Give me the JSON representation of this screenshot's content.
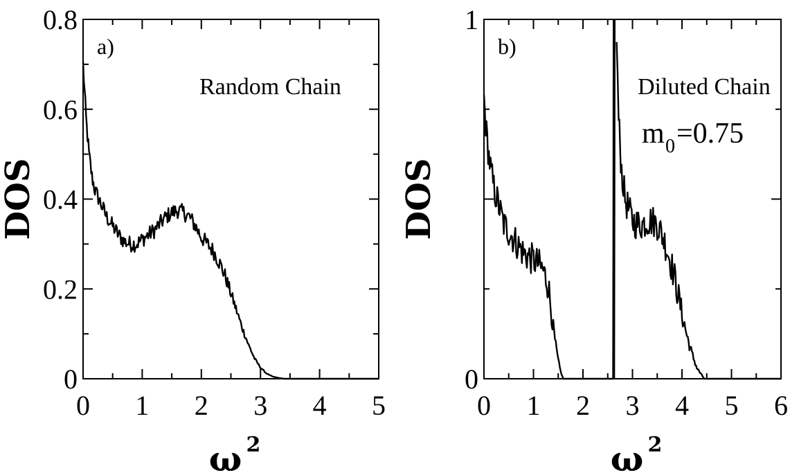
{
  "chart_data": [
    {
      "type": "line",
      "panel_label": "a)",
      "annotation": "Random Chain",
      "xlabel_base": "ω",
      "xlabel_exponent": "2",
      "ylabel": "DOS",
      "xlim": [
        0,
        5
      ],
      "ylim": [
        0,
        0.8
      ],
      "x_ticks": [
        "0",
        "1",
        "2",
        "3",
        "4",
        "5"
      ],
      "y_ticks": [
        "0",
        "0.2",
        "0.4",
        "0.6",
        "0.8"
      ],
      "series": [
        {
          "points": [
            [
              0.0,
              0.7
            ],
            [
              0.05,
              0.58
            ],
            [
              0.1,
              0.5
            ],
            [
              0.15,
              0.45
            ],
            [
              0.2,
              0.42
            ],
            [
              0.3,
              0.39
            ],
            [
              0.4,
              0.36
            ],
            [
              0.5,
              0.34
            ],
            [
              0.6,
              0.32
            ],
            [
              0.7,
              0.305
            ],
            [
              0.8,
              0.3
            ],
            [
              0.9,
              0.3
            ],
            [
              1.0,
              0.31
            ],
            [
              1.1,
              0.32
            ],
            [
              1.2,
              0.33
            ],
            [
              1.3,
              0.345
            ],
            [
              1.4,
              0.36
            ],
            [
              1.5,
              0.37
            ],
            [
              1.6,
              0.375
            ],
            [
              1.7,
              0.37
            ],
            [
              1.8,
              0.36
            ],
            [
              1.9,
              0.34
            ],
            [
              2.0,
              0.315
            ],
            [
              2.1,
              0.3
            ],
            [
              2.2,
              0.285
            ],
            [
              2.3,
              0.26
            ],
            [
              2.4,
              0.23
            ],
            [
              2.5,
              0.19
            ],
            [
              2.6,
              0.15
            ],
            [
              2.7,
              0.11
            ],
            [
              2.8,
              0.075
            ],
            [
              2.9,
              0.045
            ],
            [
              3.0,
              0.025
            ],
            [
              3.1,
              0.012
            ],
            [
              3.2,
              0.005
            ],
            [
              3.3,
              0.002
            ],
            [
              3.4,
              0.0
            ],
            [
              3.6,
              0.0
            ],
            [
              4.0,
              0.0
            ],
            [
              4.5,
              0.0
            ],
            [
              5.0,
              0.0
            ]
          ]
        }
      ]
    },
    {
      "type": "line",
      "panel_label": "b)",
      "annotation": "Diluted Chain",
      "annotation2_base": "m",
      "annotation2_sub": "0",
      "annotation2_rest": "=0.75",
      "xlabel_base": "ω",
      "xlabel_exponent": "2",
      "ylabel": "DOS",
      "xlim": [
        0,
        6
      ],
      "ylim": [
        0,
        1
      ],
      "x_ticks": [
        "0",
        "1",
        "2",
        "3",
        "4",
        "6"
      ],
      "x_tick_values": [
        0,
        1,
        2,
        3,
        4,
        6
      ],
      "x_minor_label": "5",
      "y_ticks": [
        "0",
        "1"
      ],
      "series": [
        {
          "points": [
            [
              0.0,
              0.78
            ],
            [
              0.05,
              0.68
            ],
            [
              0.1,
              0.62
            ],
            [
              0.15,
              0.57
            ],
            [
              0.2,
              0.53
            ],
            [
              0.3,
              0.48
            ],
            [
              0.4,
              0.43
            ],
            [
              0.5,
              0.41
            ],
            [
              0.6,
              0.39
            ],
            [
              0.7,
              0.37
            ],
            [
              0.8,
              0.35
            ],
            [
              0.9,
              0.34
            ],
            [
              1.0,
              0.33
            ],
            [
              1.1,
              0.32
            ],
            [
              1.2,
              0.3
            ],
            [
              1.3,
              0.26
            ],
            [
              1.35,
              0.2
            ],
            [
              1.4,
              0.14
            ],
            [
              1.45,
              0.09
            ],
            [
              1.5,
              0.05
            ],
            [
              1.55,
              0.02
            ],
            [
              1.6,
              0.0
            ],
            [
              1.7,
              0.0
            ],
            [
              2.0,
              0.0
            ],
            [
              2.3,
              0.0
            ],
            [
              2.62,
              0.0
            ]
          ]
        },
        {
          "points": [
            [
              2.62,
              0.0
            ],
            [
              2.63,
              1.0
            ]
          ]
        },
        {
          "points": [
            [
              2.68,
              0.95
            ],
            [
              2.72,
              0.72
            ],
            [
              2.78,
              0.58
            ],
            [
              2.85,
              0.5
            ],
            [
              2.95,
              0.46
            ],
            [
              3.0,
              0.44
            ],
            [
              3.1,
              0.43
            ],
            [
              3.2,
              0.43
            ],
            [
              3.3,
              0.44
            ],
            [
              3.4,
              0.44
            ],
            [
              3.5,
              0.43
            ],
            [
              3.6,
              0.4
            ],
            [
              3.7,
              0.36
            ],
            [
              3.8,
              0.31
            ],
            [
              3.9,
              0.25
            ],
            [
              4.0,
              0.18
            ],
            [
              4.1,
              0.12
            ],
            [
              4.2,
              0.07
            ],
            [
              4.3,
              0.03
            ],
            [
              4.4,
              0.01
            ],
            [
              4.45,
              0.0
            ],
            [
              4.8,
              0.0
            ],
            [
              5.5,
              0.0
            ],
            [
              6.0,
              0.0
            ]
          ]
        }
      ]
    }
  ]
}
